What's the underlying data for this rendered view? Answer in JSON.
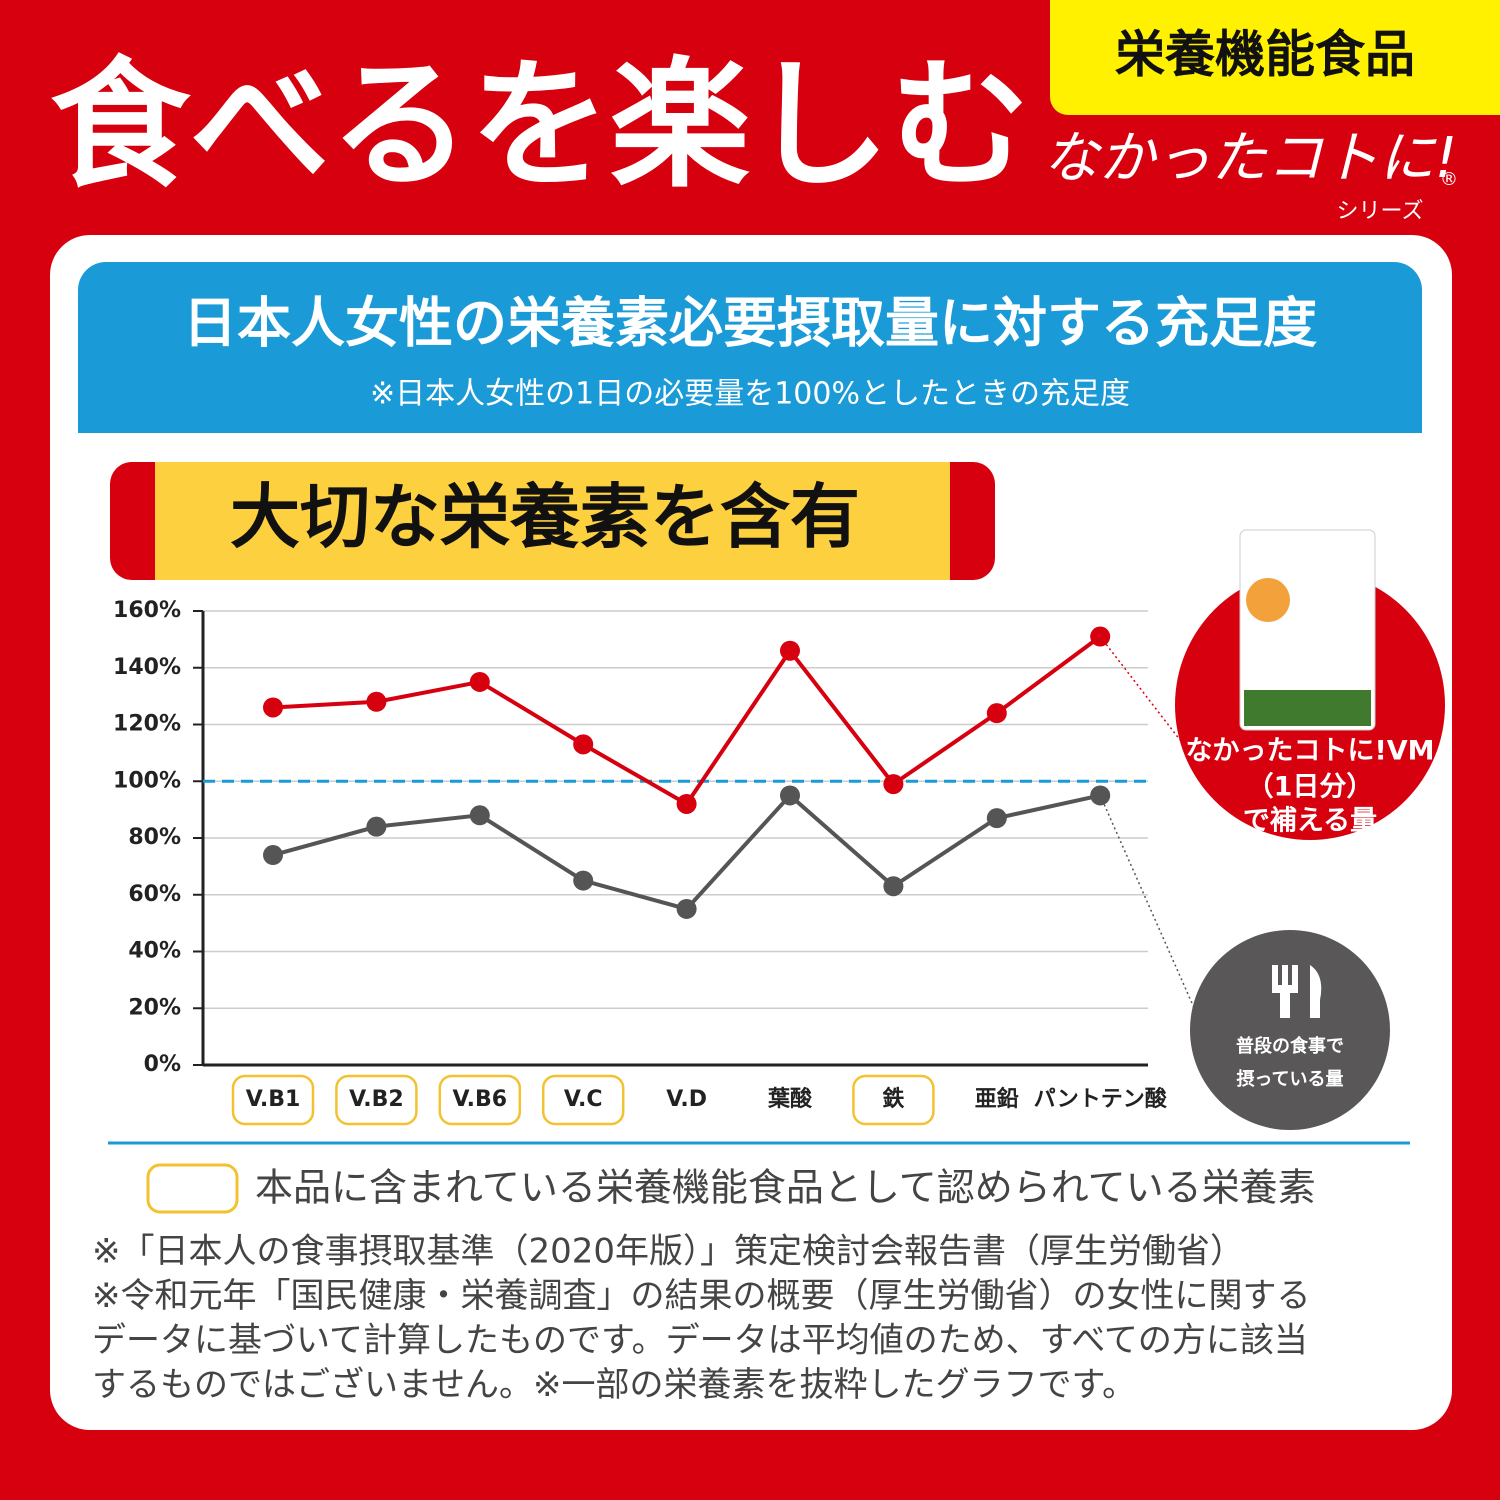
{
  "header": {
    "title": "食べるを楽しむ",
    "badge": "栄養機能食品",
    "brand": "なかったコトに!",
    "brand_mark": "®",
    "brand_sub": "シリーズ"
  },
  "banner": {
    "title": "日本人女性の栄養素必要摂取量に対する充足度",
    "subtitle": "※日本人女性の1日の必要量を100%としたときの充足度"
  },
  "chart_data": {
    "type": "line",
    "title": "大切な栄養素を含有",
    "categories": [
      "V.B1",
      "V.B2",
      "V.B6",
      "V.C",
      "V.D",
      "葉酸",
      "鉄",
      "亜鉛",
      "パントテン酸"
    ],
    "highlighted": [
      true,
      true,
      true,
      true,
      false,
      false,
      true,
      false,
      false
    ],
    "highlight_color": "#f2c230",
    "series": [
      {
        "name": [
          "なかったコトに!VM",
          "（1日分）",
          "で補える量"
        ],
        "color": "#d7000f",
        "values": [
          126,
          128,
          135,
          113,
          92,
          146,
          99,
          124,
          151
        ]
      },
      {
        "name": [
          "普段の食事で",
          "摂っている量"
        ],
        "color": "#555555",
        "values": [
          74,
          84,
          88,
          65,
          55,
          95,
          63,
          87,
          95
        ]
      }
    ],
    "ylim": [
      0,
      160
    ],
    "yticks": [
      {
        "value": 0,
        "label": "0%"
      },
      {
        "value": 20,
        "label": "20%"
      },
      {
        "value": 40,
        "label": "40%"
      },
      {
        "value": 60,
        "label": "60%"
      },
      {
        "value": 80,
        "label": "80%"
      },
      {
        "value": 100,
        "label": "100%"
      },
      {
        "value": 120,
        "label": "120%"
      },
      {
        "value": 140,
        "label": "140%"
      },
      {
        "value": 160,
        "label": "160%"
      }
    ],
    "reference_line": 100,
    "reference_color": "#1a9ad6",
    "grid": true,
    "legend_text": "本品に含まれている栄養機能食品として認められている栄養素"
  },
  "notes": [
    "※「日本人の食事摂取基準（2020年版）」策定検討会報告書（厚生労働省）",
    "※令和元年「国民健康・栄養調査」の結果の概要（厚生労働省）の女性に関する",
    "データに基づいて計算したものです。データは平均値のため、すべての方に該当",
    "するものではございません。※一部の栄養素を抜粋したグラフです。"
  ]
}
